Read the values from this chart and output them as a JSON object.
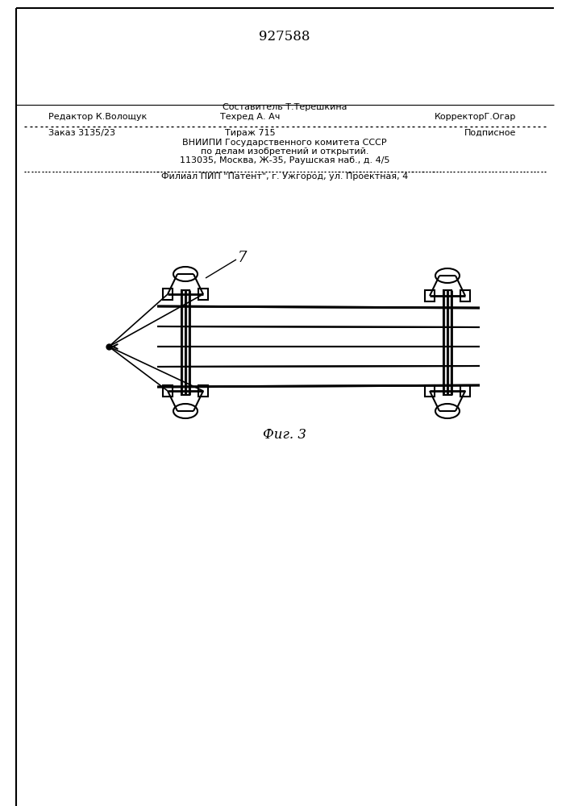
{
  "title": "927588",
  "fig_label": "Фиг. 3",
  "label_7": "7",
  "background_color": "#ffffff",
  "line_color": "#000000",
  "footer_line1_left": "Редактор К.Волощук",
  "footer_line1_center": "Техред А. Ач",
  "footer_line1_right": "КорректорГ.Огар",
  "footer_above_left": "Составитель Т.Терешкина",
  "footer_line2_left": "Заказ 3135/23",
  "footer_line2_center": "Тираж 715",
  "footer_line2_right": "Подписное",
  "footer_line3": "ВНИИПИ Государственного комитета СССР",
  "footer_line4": "по делам изобретений и открытий.",
  "footer_line5": "113035, Москва, Ж-35, Раушская наб., д. 4/5",
  "footer_dashed": "Филиал ПИП \"Патент\", г. Ужгород, ул. Проектная, 4"
}
